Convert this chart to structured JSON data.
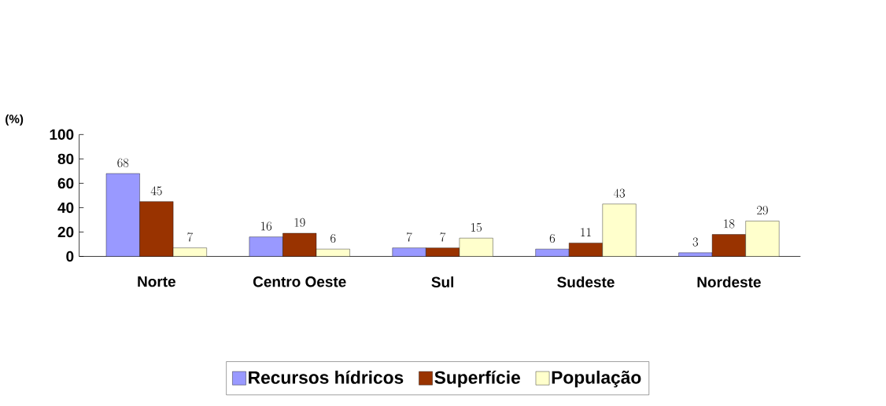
{
  "chart_data": {
    "type": "bar",
    "ylabel": "(%)",
    "categories": [
      "Norte",
      "Centro Oeste",
      "Sul",
      "Sudeste",
      "Nordeste"
    ],
    "series": [
      {
        "name": "Recursos hídricos",
        "color": "#9999ff",
        "values": [
          68,
          16,
          7,
          6,
          3
        ]
      },
      {
        "name": "Superfície",
        "color": "#993300",
        "values": [
          45,
          19,
          7,
          11,
          18
        ]
      },
      {
        "name": "População",
        "color": "#ffffcc",
        "values": [
          7,
          6,
          15,
          43,
          29
        ]
      }
    ],
    "ylim": [
      0,
      100
    ],
    "yticks": [
      0,
      20,
      40,
      60,
      80,
      100
    ],
    "data_labels": true,
    "legend": "bottom",
    "grid": false
  }
}
